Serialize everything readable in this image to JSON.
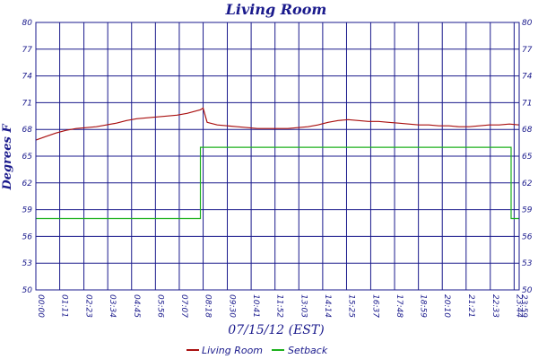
{
  "chart_data": {
    "type": "line",
    "title": "Living Room",
    "ylabel": "Degrees F",
    "xlabel": "07/15/12 (EST)",
    "ylim": [
      50,
      80
    ],
    "y_ticks": [
      "80",
      "77",
      "74",
      "71",
      "68",
      "65",
      "62",
      "59",
      "56",
      "53",
      "50"
    ],
    "x_ticks": [
      "00:00",
      "01:11",
      "02:23",
      "03:34",
      "04:45",
      "05:56",
      "07:07",
      "08:18",
      "09:30",
      "10:41",
      "11:52",
      "13:03",
      "14:14",
      "15:25",
      "16:37",
      "17:48",
      "18:59",
      "20:10",
      "21:21",
      "22:33",
      "23:44",
      "23:59"
    ],
    "grid": true,
    "legend": "bottom",
    "series": [
      {
        "name": "Living Room",
        "color": "#aa1111",
        "x": [
          "00:00",
          "00:30",
          "01:00",
          "01:30",
          "02:00",
          "02:30",
          "03:00",
          "03:30",
          "04:00",
          "04:30",
          "05:00",
          "05:30",
          "06:00",
          "06:30",
          "07:00",
          "07:30",
          "08:00",
          "08:10",
          "08:18",
          "08:30",
          "09:00",
          "09:30",
          "10:00",
          "10:30",
          "11:00",
          "11:30",
          "12:00",
          "12:30",
          "13:00",
          "13:30",
          "14:00",
          "14:30",
          "15:00",
          "15:30",
          "16:00",
          "16:30",
          "17:00",
          "17:30",
          "18:00",
          "18:30",
          "19:00",
          "19:30",
          "20:00",
          "20:30",
          "21:00",
          "21:30",
          "22:00",
          "22:30",
          "23:00",
          "23:30",
          "23:59"
        ],
        "values": [
          66.8,
          67.2,
          67.6,
          67.9,
          68.1,
          68.2,
          68.3,
          68.5,
          68.7,
          69.0,
          69.2,
          69.3,
          69.4,
          69.5,
          69.6,
          69.8,
          70.1,
          70.2,
          70.4,
          68.8,
          68.5,
          68.4,
          68.3,
          68.2,
          68.1,
          68.1,
          68.1,
          68.1,
          68.2,
          68.3,
          68.5,
          68.8,
          69.0,
          69.1,
          69.0,
          68.9,
          68.9,
          68.8,
          68.7,
          68.6,
          68.5,
          68.5,
          68.4,
          68.4,
          68.3,
          68.3,
          68.4,
          68.5,
          68.5,
          68.6,
          68.5
        ]
      },
      {
        "name": "Setback",
        "color": "#1db11d",
        "x": [
          "00:00",
          "08:10",
          "08:10",
          "23:35",
          "23:35",
          "23:59"
        ],
        "values": [
          58,
          58,
          66,
          66,
          58,
          58
        ]
      }
    ]
  }
}
